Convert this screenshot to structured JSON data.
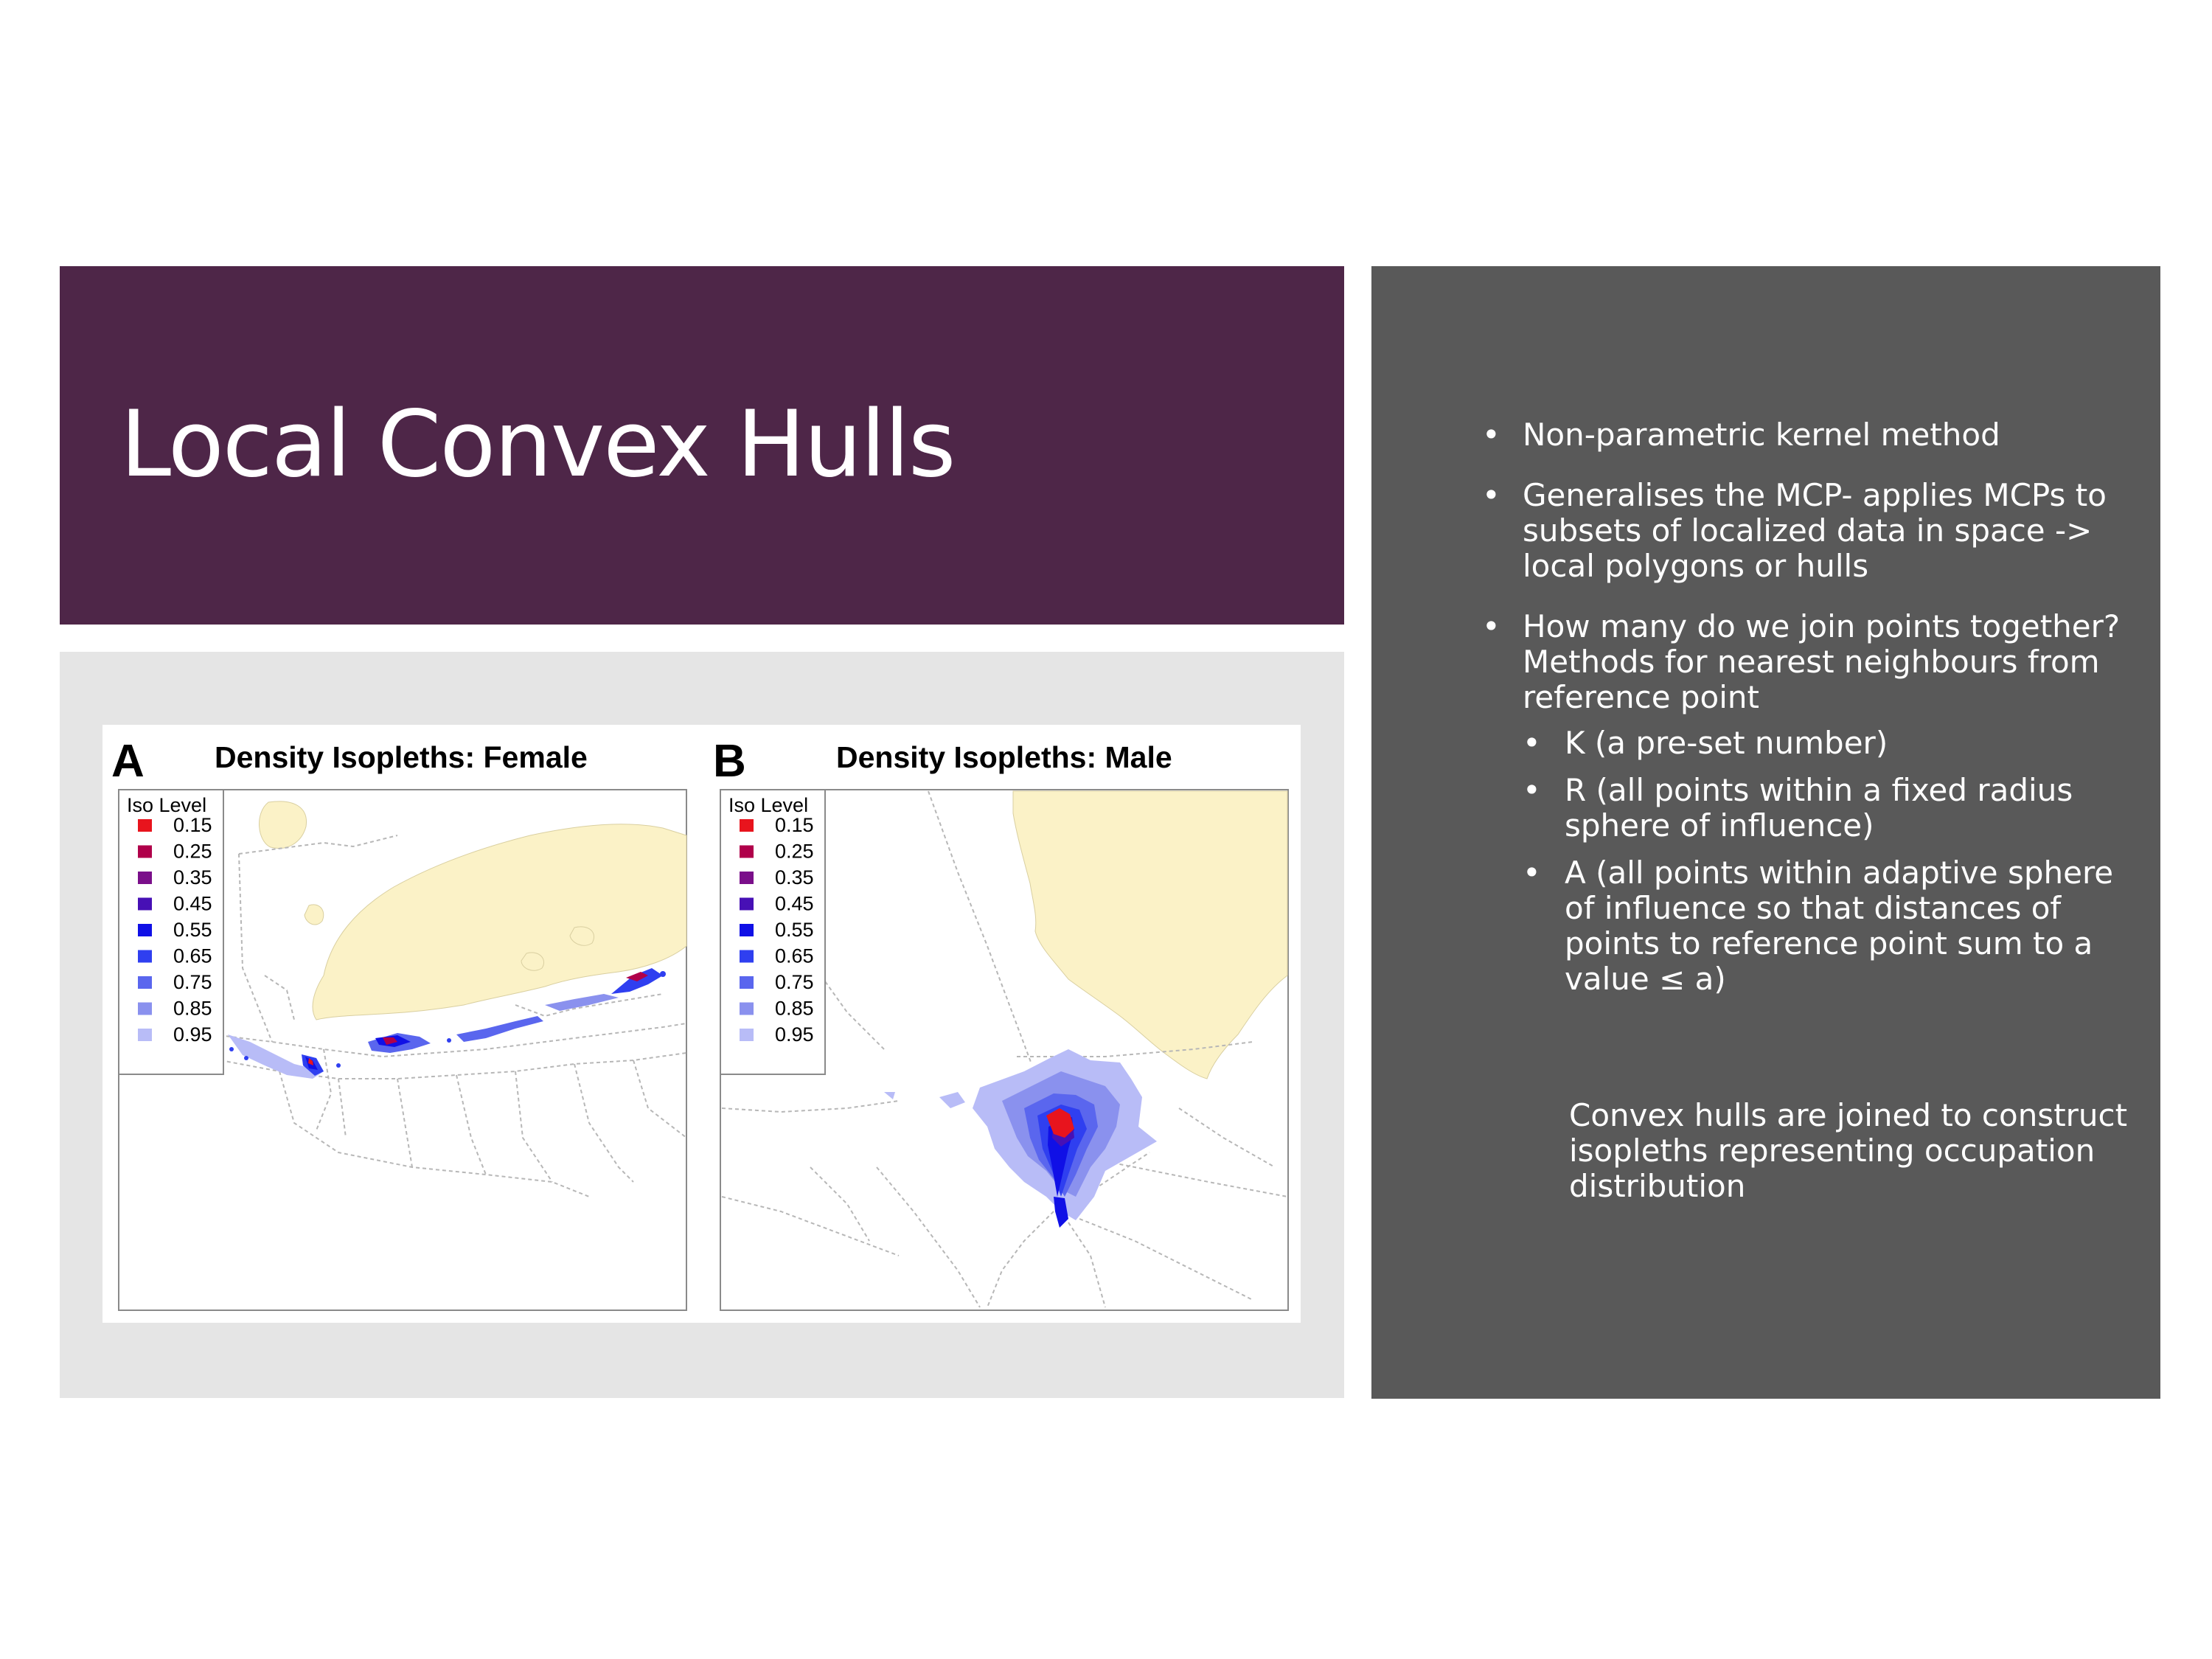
{
  "slide": {
    "title": "Local Convex Hulls",
    "colors": {
      "title_bg": "#4e2648",
      "panel_bg": "#595959",
      "figure_bg": "#e5e5e5",
      "land": "#fbf2c7"
    }
  },
  "figure": {
    "panels": [
      {
        "letter": "A",
        "title": "Density Isopleths: Female"
      },
      {
        "letter": "B",
        "title": "Density Isopleths: Male"
      }
    ],
    "legend": {
      "title": "Iso Level",
      "levels": [
        {
          "label": "0.15",
          "color": "#e8141d"
        },
        {
          "label": "0.25",
          "color": "#b0004a"
        },
        {
          "label": "0.35",
          "color": "#7a0f8a"
        },
        {
          "label": "0.45",
          "color": "#4710b5"
        },
        {
          "label": "0.55",
          "color": "#1010e6"
        },
        {
          "label": "0.65",
          "color": "#2f3ff0"
        },
        {
          "label": "0.75",
          "color": "#5a66ee"
        },
        {
          "label": "0.85",
          "color": "#8a91ee"
        },
        {
          "label": "0.95",
          "color": "#b8bcf7"
        }
      ]
    }
  },
  "bullets": [
    {
      "text": "Non-parametric kernel method"
    },
    {
      "text": "Generalises the MCP- applies MCPs to subsets of localized data in space -> local polygons or hulls"
    },
    {
      "text": "How many do we join points together? Methods for nearest neighbours from reference point",
      "sub": [
        "K (a pre-set number)",
        "R (all points within a fixed radius sphere of influence)",
        "A (all points within adaptive sphere of influence so that distances of points to reference point sum to a value ≤ a)"
      ]
    }
  ],
  "summary": "Convex hulls are joined to construct isopleths representing occupation distribution"
}
